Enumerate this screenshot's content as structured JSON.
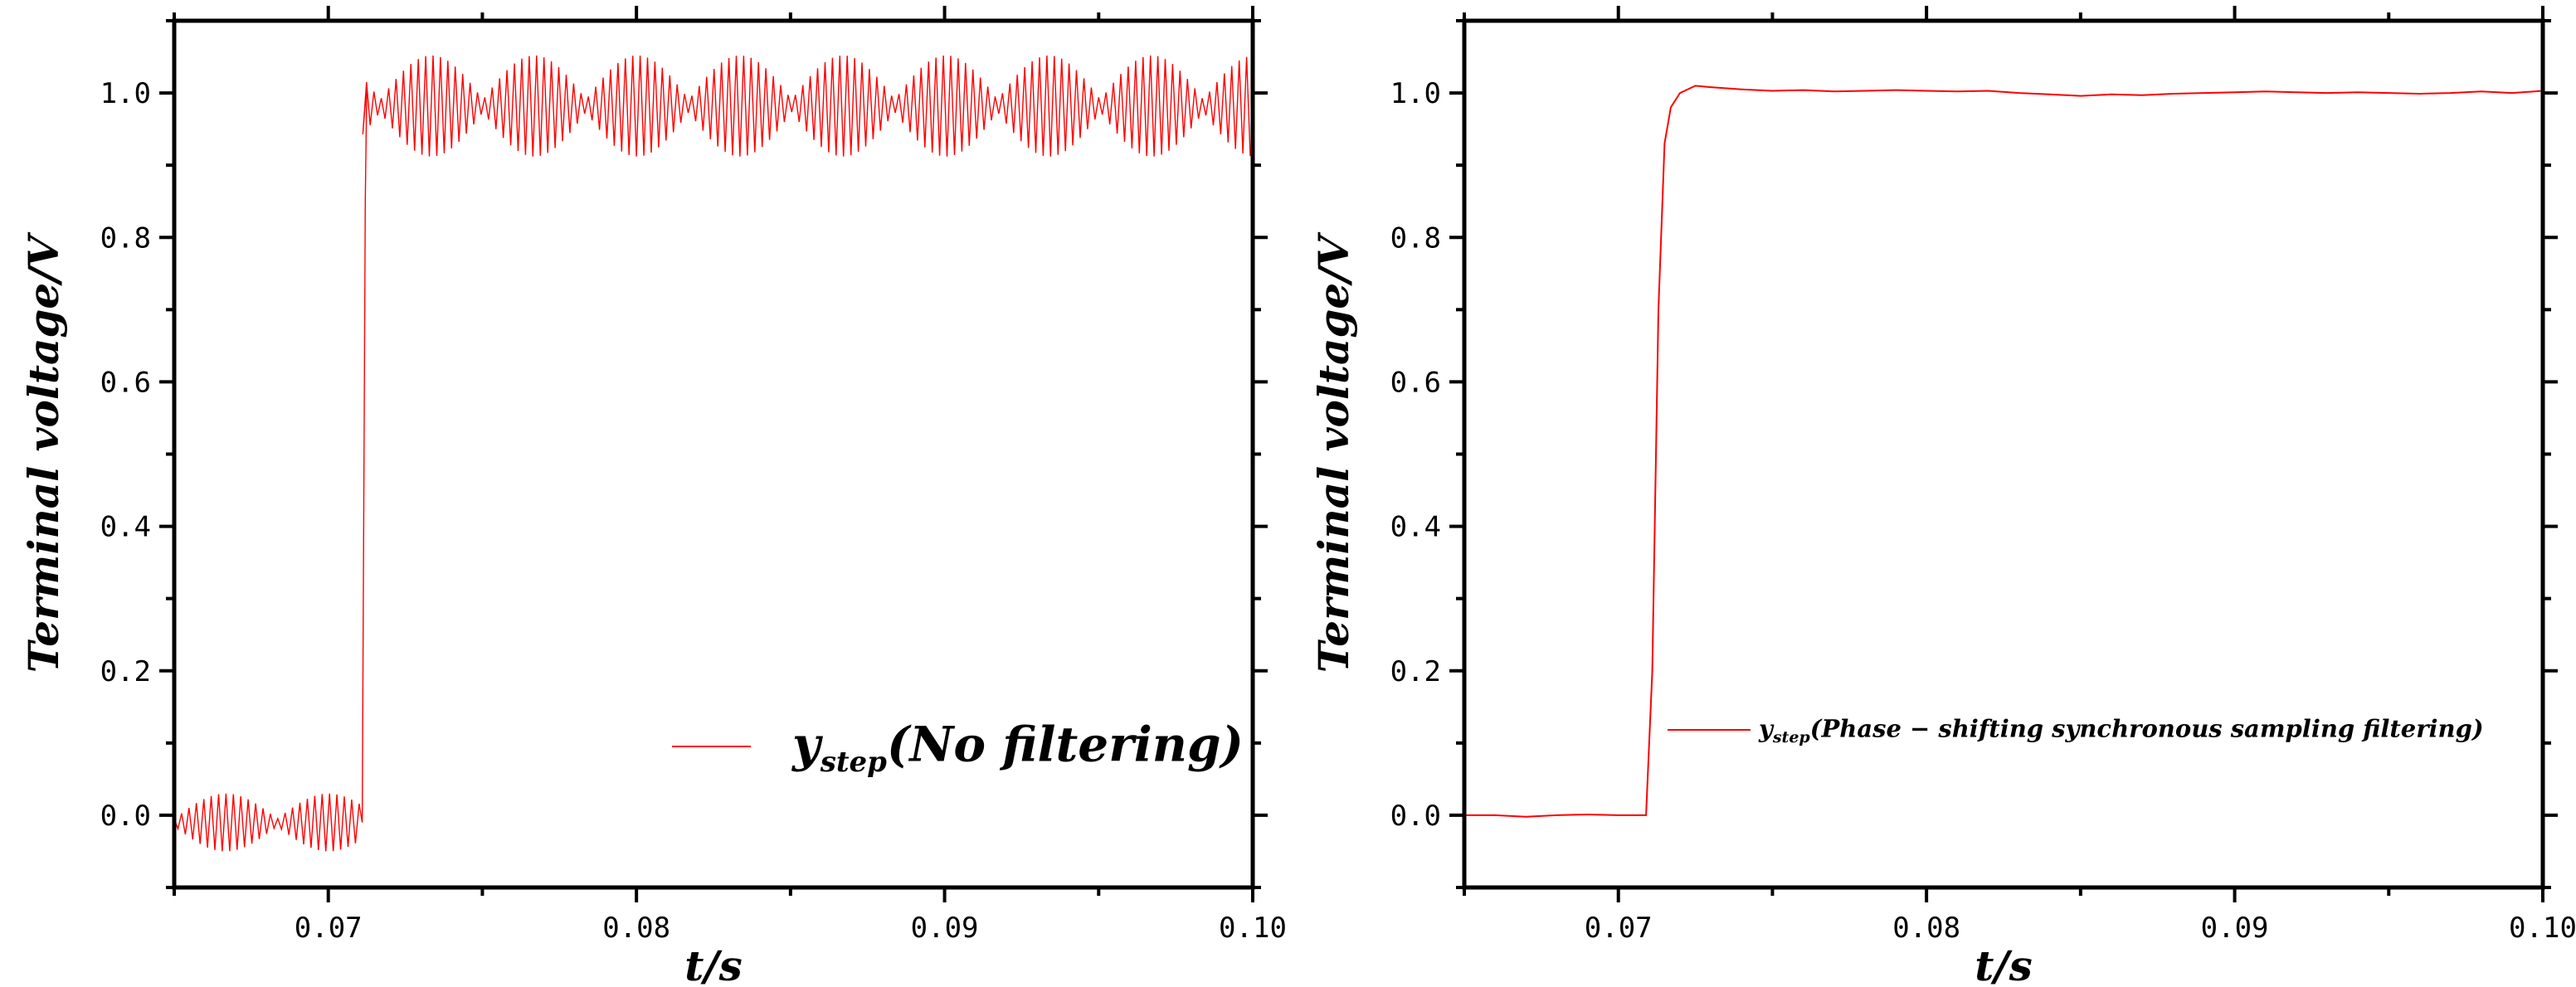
{
  "chart_data": [
    {
      "type": "line",
      "panel": "left",
      "xlabel": "t/s",
      "ylabel": "Terminal voltage/V",
      "xlim": [
        0.065,
        0.1
      ],
      "ylim": [
        -0.1,
        1.1
      ],
      "xticks": [
        0.07,
        0.08,
        0.09,
        0.1
      ],
      "xtick_labels": [
        "0.07",
        "0.08",
        "0.09",
        "0.10"
      ],
      "yticks": [
        0.0,
        0.2,
        0.4,
        0.6,
        0.8,
        1.0
      ],
      "ytick_labels": [
        "0.0",
        "0.2",
        "0.4",
        "0.6",
        "0.8",
        "1.0"
      ],
      "grid": false,
      "legend_position": "lower-right",
      "series": [
        {
          "name": "y_step(No filtering)",
          "legend_main": "y",
          "legend_sub": "step",
          "legend_rest": "(No filtering)",
          "color": "#ff0000",
          "step_time": 0.0711,
          "pre_level": -0.01,
          "post_level": 0.982,
          "pre_envelope_amplitude": 0.04,
          "post_envelope_amplitude": 0.07,
          "envelope_period": 0.00334,
          "x": [
            0.065,
            0.0667,
            0.0684,
            0.0701,
            0.0711,
            0.0712,
            0.0715,
            0.0732,
            0.0749,
            0.0766,
            0.0782,
            0.0799,
            0.0816,
            0.0832,
            0.0849,
            0.0866,
            0.0883,
            0.0899,
            0.0916,
            0.0932,
            0.0949,
            0.0966,
            0.0983,
            0.1
          ],
          "y_center": [
            -0.01,
            -0.01,
            -0.01,
            -0.01,
            -0.01,
            0.982,
            0.982,
            0.982,
            0.982,
            0.982,
            0.982,
            0.982,
            0.982,
            0.982,
            0.982,
            0.982,
            0.982,
            0.982,
            0.982,
            0.982,
            0.982,
            0.982,
            0.982,
            0.982
          ]
        }
      ]
    },
    {
      "type": "line",
      "panel": "right",
      "xlabel": "t/s",
      "ylabel": "Terminal voltage/V",
      "xlim": [
        0.065,
        0.1
      ],
      "ylim": [
        -0.1,
        1.1
      ],
      "xticks": [
        0.07,
        0.08,
        0.09,
        0.1
      ],
      "xtick_labels": [
        "0.07",
        "0.08",
        "0.09",
        "0.10"
      ],
      "yticks": [
        0.0,
        0.2,
        0.4,
        0.6,
        0.8,
        1.0
      ],
      "ytick_labels": [
        "0.0",
        "0.2",
        "0.4",
        "0.6",
        "0.8",
        "1.0"
      ],
      "grid": false,
      "legend_position": "center-right",
      "series": [
        {
          "name": "y_step(Phase-shifting synchronous sampling filtering)",
          "legend_main": "y",
          "legend_sub": "step",
          "legend_rest": "(Phase − shifting synchronous sampling filtering)",
          "color": "#ff0000",
          "x": [
            0.065,
            0.066,
            0.067,
            0.068,
            0.069,
            0.07,
            0.0705,
            0.0709,
            0.0711,
            0.0713,
            0.0715,
            0.0717,
            0.072,
            0.0725,
            0.073,
            0.074,
            0.075,
            0.076,
            0.077,
            0.078,
            0.079,
            0.08,
            0.081,
            0.082,
            0.083,
            0.084,
            0.085,
            0.086,
            0.087,
            0.088,
            0.089,
            0.09,
            0.091,
            0.092,
            0.093,
            0.094,
            0.095,
            0.096,
            0.097,
            0.098,
            0.099,
            0.1
          ],
          "y": [
            0.0,
            0.0,
            -0.002,
            0.0,
            0.001,
            0.0,
            0.0,
            0.0,
            0.2,
            0.7,
            0.93,
            0.98,
            1.0,
            1.01,
            1.008,
            1.005,
            1.003,
            1.004,
            1.002,
            1.003,
            1.004,
            1.003,
            1.002,
            1.003,
            1.0,
            0.998,
            0.996,
            0.998,
            0.997,
            0.999,
            1.0,
            1.001,
            1.002,
            1.001,
            1.0,
            1.001,
            1.0,
            0.999,
            1.0,
            1.002,
            1.0,
            1.003
          ]
        }
      ]
    }
  ]
}
